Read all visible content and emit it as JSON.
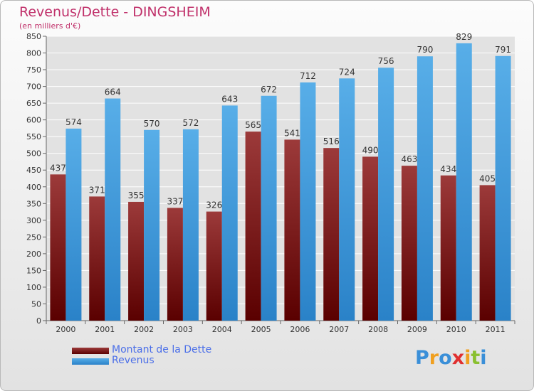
{
  "chart_data": {
    "type": "bar",
    "title": "Revenus/Dette - DINGSHEIM",
    "subtitle": "(en milliers d'€)",
    "categories": [
      "2000",
      "2001",
      "2002",
      "2003",
      "2004",
      "2005",
      "2006",
      "2007",
      "2008",
      "2009",
      "2010",
      "2011"
    ],
    "series": [
      {
        "name": "Montant de la Dette",
        "color": "#7a1010",
        "values": [
          437,
          371,
          355,
          337,
          326,
          565,
          541,
          516,
          490,
          463,
          434,
          405
        ]
      },
      {
        "name": "Revenus",
        "color": "#4aa0e2",
        "values": [
          574,
          664,
          570,
          572,
          643,
          672,
          712,
          724,
          756,
          790,
          829,
          791
        ]
      }
    ],
    "ylim": [
      0,
      850
    ],
    "yticks": [
      0,
      50,
      100,
      150,
      200,
      250,
      300,
      350,
      400,
      450,
      500,
      550,
      600,
      650,
      700,
      750,
      800,
      850
    ],
    "grid": true,
    "legend_position": "bottom-left"
  },
  "branding": {
    "logo_letters": [
      "P",
      "r",
      "o",
      "x",
      "i",
      "t",
      "i"
    ],
    "logo_colors": [
      "#3a8fd8",
      "#f0a020",
      "#3a8fd8",
      "#e03030",
      "#f0a020",
      "#8ac030",
      "#3a8fd8"
    ]
  }
}
